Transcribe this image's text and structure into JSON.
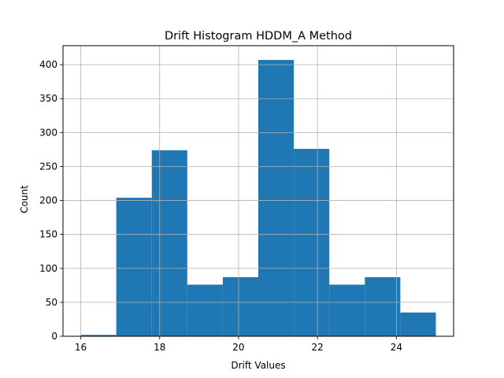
{
  "chart_data": {
    "type": "bar",
    "title": "Drift Histogram HDDM_A Method",
    "xlabel": "Drift Values",
    "ylabel": "Count",
    "xlim": [
      15.55,
      25.45
    ],
    "ylim": [
      0,
      428
    ],
    "grid": true,
    "bar_color": "#1f77b4",
    "x_ticks": [
      16,
      18,
      20,
      22,
      24
    ],
    "y_ticks": [
      0,
      50,
      100,
      150,
      200,
      250,
      300,
      350,
      400
    ],
    "bin_edges": [
      16.0,
      16.9,
      17.8,
      18.7,
      19.6,
      20.5,
      21.4,
      22.3,
      23.2,
      24.1,
      25.0
    ],
    "values": [
      2,
      204,
      274,
      76,
      87,
      407,
      276,
      76,
      87,
      35
    ]
  }
}
